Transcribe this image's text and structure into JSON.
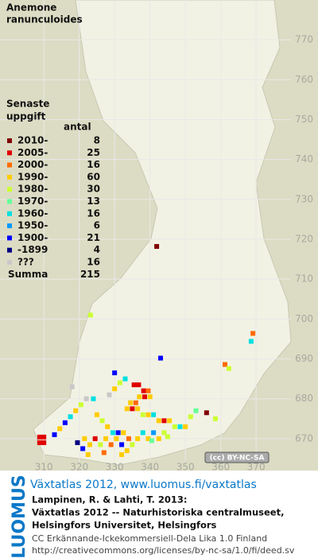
{
  "map": {
    "title_lines": [
      "Anemone",
      "ranunculoides"
    ],
    "xlim": [
      297.6,
      387.5
    ],
    "ylim": [
      662,
      780
    ],
    "xticks": [
      310,
      320,
      330,
      340,
      350,
      360,
      370
    ],
    "yticks": [
      670,
      680,
      690,
      700,
      710,
      720,
      730,
      740,
      750,
      760,
      770
    ],
    "legend": {
      "title_lines": [
        "Senaste",
        "uppgift"
      ],
      "count_header": "antal",
      "items": [
        {
          "label": "2010-",
          "count": 8,
          "color": "#800000"
        },
        {
          "label": "2005-",
          "count": 25,
          "color": "#e00000"
        },
        {
          "label": "2000-",
          "count": 16,
          "color": "#ff6a00"
        },
        {
          "label": "1990-",
          "count": 60,
          "color": "#ffcc00"
        },
        {
          "label": "1980-",
          "count": 30,
          "color": "#ccff33"
        },
        {
          "label": "1970-",
          "count": 13,
          "color": "#66ff99"
        },
        {
          "label": "1960-",
          "count": 16,
          "color": "#00e0e0"
        },
        {
          "label": "1950-",
          "count": 6,
          "color": "#0099ff"
        },
        {
          "label": "1900-",
          "count": 21,
          "color": "#0000ff"
        },
        {
          "label": "-1899",
          "count": 4,
          "color": "#000080"
        },
        {
          "label": "???",
          "count": 16,
          "color": "#c8c8c8"
        }
      ],
      "total_label": "Summa",
      "total": 215
    },
    "points": {
      "x": [
        341.9,
        323.2,
        369.1,
        368.6,
        361.2,
        362.3,
        343.0,
        310.0,
        308.8,
        310.0,
        308.8,
        335.5,
        336.8,
        338.2,
        339.5,
        337.0,
        338.5,
        340.0,
        336.0,
        334.5,
        333.0,
        331.5,
        330.0,
        328.5,
        333.5,
        335.0,
        336.5,
        338.0,
        339.5,
        341.0,
        342.5,
        344.0,
        345.5,
        347.0,
        348.5,
        350.0,
        325.0,
        326.5,
        328.0,
        329.5,
        331.0,
        332.5,
        334.0,
        322.0,
        320.5,
        319.0,
        317.5,
        316.0,
        314.5,
        313.0,
        321.5,
        323.0,
        324.5,
        326.0,
        327.5,
        329.0,
        330.5,
        332.0,
        333.5,
        335.0,
        336.5,
        338.0,
        339.5,
        341.0,
        342.5,
        344.0,
        351.5,
        353.0,
        356.0,
        358.5,
        319.5,
        321.0,
        322.5,
        327.0,
        332.0,
        340.5,
        345.0,
        318.0,
        324.0,
        330.0
      ],
      "y": [
        718.2,
        701.0,
        696.4,
        694.4,
        688.6,
        687.6,
        690.2,
        669.0,
        669.0,
        670.4,
        670.4,
        683.5,
        683.5,
        682.0,
        682.0,
        680.5,
        680.5,
        680.5,
        679.0,
        679.0,
        685.0,
        684.0,
        682.5,
        681.0,
        677.5,
        677.5,
        677.5,
        676.0,
        676.0,
        676.0,
        674.5,
        674.5,
        674.5,
        673.0,
        673.0,
        673.0,
        676.0,
        674.5,
        673.0,
        671.5,
        671.5,
        671.5,
        670.0,
        680.0,
        678.5,
        677.0,
        675.5,
        674.0,
        672.5,
        671.0,
        670.0,
        668.5,
        670.0,
        668.5,
        670.0,
        668.5,
        670.0,
        668.5,
        667.0,
        668.5,
        670.0,
        671.5,
        670.0,
        671.5,
        670.0,
        671.5,
        675.5,
        677.0,
        676.5,
        675.0,
        669.0,
        667.5,
        666.0,
        666.5,
        666.0,
        669.5,
        670.5,
        683.0,
        680.0,
        686.5
      ],
      "period": [
        0,
        4,
        2,
        6,
        2,
        4,
        8,
        1,
        1,
        1,
        1,
        1,
        1,
        1,
        2,
        3,
        1,
        3,
        2,
        3,
        6,
        4,
        3,
        10,
        3,
        1,
        3,
        4,
        3,
        6,
        3,
        1,
        3,
        4,
        6,
        3,
        3,
        4,
        3,
        6,
        8,
        3,
        2,
        10,
        4,
        3,
        6,
        8,
        3,
        8,
        3,
        3,
        1,
        4,
        3,
        2,
        3,
        8,
        3,
        4,
        3,
        6,
        3,
        7,
        3,
        4,
        4,
        5,
        0,
        4,
        9,
        8,
        3,
        2,
        3,
        5,
        4,
        10,
        6,
        8
      ]
    },
    "license_badge": "(cc) BY-NC-SA"
  },
  "footer": {
    "brand": "LUOMUS",
    "headline": "Växtatlas 2012, www.luomus.fi/vaxtatlas",
    "citation": [
      "Lampinen, R. & Lahti, T. 2013:",
      "Växtatlas 2012 -- Naturhistoriska centralmuseet,",
      "Helsingfors Universitet, Helsingfors"
    ],
    "license": [
      "CC Erkännande-Ickekommersiell-Dela Lika 1.0 Finland",
      "http://creativecommons.org/licenses/by-nc-sa/1.0/fi/deed.sv"
    ]
  }
}
